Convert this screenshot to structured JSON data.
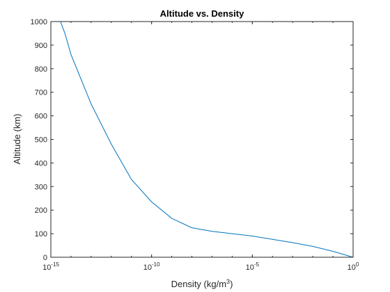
{
  "chart_data": {
    "type": "line",
    "title": "Altitude vs. Density",
    "xlabel": "Density (kg/m",
    "xlabel_superscript": "3",
    "xlabel_suffix": ")",
    "ylabel": "Altitude (km)",
    "xscale": "log",
    "xlim": [
      1e-15,
      1
    ],
    "ylim": [
      0,
      1000
    ],
    "grid": false,
    "box": true,
    "line_color": "#0072bd",
    "x_ticks": [
      {
        "value": 1e-15,
        "base": "10",
        "exp": "-15"
      },
      {
        "value": 1e-10,
        "base": "10",
        "exp": "-10"
      },
      {
        "value": 1e-05,
        "base": "10",
        "exp": "-5"
      },
      {
        "value": 1,
        "base": "10",
        "exp": "0"
      }
    ],
    "y_ticks": [
      {
        "value": 0,
        "label": "0"
      },
      {
        "value": 100,
        "label": "100"
      },
      {
        "value": 200,
        "label": "200"
      },
      {
        "value": 300,
        "label": "300"
      },
      {
        "value": 400,
        "label": "400"
      },
      {
        "value": 500,
        "label": "500"
      },
      {
        "value": 600,
        "label": "600"
      },
      {
        "value": 700,
        "label": "700"
      },
      {
        "value": 800,
        "label": "800"
      },
      {
        "value": 900,
        "label": "900"
      },
      {
        "value": 1000,
        "label": "1000"
      }
    ],
    "series": [
      {
        "x": [
          1.2,
          0.1,
          0.01,
          0.001,
          0.0001,
          1e-05,
          1e-06,
          1e-07,
          1e-08,
          1e-09,
          1e-10,
          1e-11,
          1e-12,
          1e-13,
          1e-14,
          5e-15,
          3e-15
        ],
        "y": [
          0,
          25,
          46,
          62,
          76,
          90,
          100,
          110,
          125,
          165,
          235,
          330,
          480,
          650,
          860,
          950,
          1000
        ]
      }
    ]
  }
}
